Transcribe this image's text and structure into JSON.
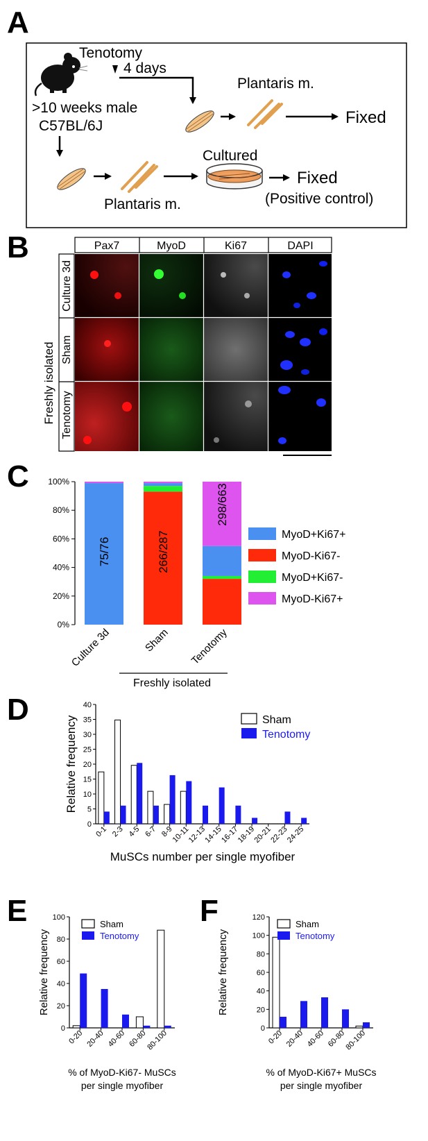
{
  "panels": {
    "A": {
      "letter": "A",
      "tenotomy_label": "Tenotomy",
      "days_label": "4 days",
      "mouse_line1": ">10 weeks male",
      "mouse_line2": "C57BL/6J",
      "plantaris_top": "Plantaris m.",
      "plantaris_bottom": "Plantaris m.",
      "fixed_top": "Fixed",
      "cultured_label": "Cultured",
      "fixed_bottom": "Fixed",
      "positive_control": "(Positive control)"
    },
    "B": {
      "letter": "B",
      "columns": [
        "Pax7",
        "MyoD",
        "Ki67",
        "DAPI"
      ],
      "rows": [
        "Culture 3d",
        "Sham",
        "Tenotomy"
      ],
      "group_label": "Freshly isolated"
    },
    "C": {
      "letter": "C",
      "group_label": "Freshly isolated",
      "colors": {
        "MyoD+Ki67+": "#4a90f0",
        "MyoD-Ki67-": "#ff2a0a",
        "MyoD+Ki67-": "#22ee33",
        "MyoD-Ki67+": "#dd55ee"
      }
    },
    "D": {
      "letter": "D"
    },
    "E": {
      "letter": "E"
    },
    "F": {
      "letter": "F"
    }
  },
  "chart_data": [
    {
      "id": "C",
      "type": "bar",
      "stacked": true,
      "categories": [
        "Culture 3d",
        "Sham",
        "Tenotomy"
      ],
      "ylim": [
        0,
        100
      ],
      "yticks": [
        "0%",
        "20%",
        "40%",
        "60%",
        "80%",
        "100%"
      ],
      "series": [
        {
          "name": "MyoD-Ki67-",
          "values": [
            0,
            93,
            32
          ],
          "color": "#ff2a0a"
        },
        {
          "name": "MyoD+Ki67-",
          "values": [
            0,
            4,
            2
          ],
          "color": "#22ee33"
        },
        {
          "name": "MyoD+Ki67+",
          "values": [
            99,
            2,
            21
          ],
          "color": "#4a90f0"
        },
        {
          "name": "MyoD-Ki67+",
          "values": [
            1,
            1,
            45
          ],
          "color": "#dd55ee"
        }
      ],
      "legend_order": [
        "MyoD+Ki67+",
        "MyoD-Ki67-",
        "MyoD+Ki67-",
        "MyoD-Ki67+"
      ],
      "bar_labels": [
        "75/76",
        "266/287",
        "298/663"
      ],
      "legend_position": "right"
    },
    {
      "id": "D",
      "type": "bar",
      "categories": [
        "0-1",
        "2-3",
        "4-5",
        "6-7",
        "8-9",
        "10-11",
        "12-13",
        "14-15",
        "16-17",
        "18-19",
        "20-21",
        "22-23",
        "24-25"
      ],
      "ylim": [
        0,
        40
      ],
      "yticks": [
        "0",
        "5",
        "10",
        "15",
        "20",
        "25",
        "30",
        "35",
        "40"
      ],
      "ylabel": "Relative frequency",
      "xlabel": "MuSCs number per single myofiber",
      "series": [
        {
          "name": "Sham",
          "values": [
            17.4,
            34.8,
            19.6,
            10.9,
            6.5,
            10.9,
            0,
            0,
            0,
            0,
            0,
            0,
            0
          ]
        },
        {
          "name": "Tenotomy",
          "values": [
            4.1,
            6.1,
            20.4,
            6.1,
            16.3,
            14.3,
            6.1,
            12.2,
            6.1,
            2.0,
            0,
            4.1,
            2.0
          ]
        }
      ],
      "legend_position": "top-right"
    },
    {
      "id": "E",
      "type": "bar",
      "categories": [
        "0-20",
        "20-40",
        "40-60",
        "60-80",
        "80-100"
      ],
      "ylim": [
        0,
        100
      ],
      "yticks": [
        "0",
        "20",
        "40",
        "60",
        "80",
        "100"
      ],
      "ylabel": "Relative frequency",
      "xlabel_line1": "% of MyoD-Ki67- MuSCs",
      "xlabel_line2": "per single myofiber",
      "series": [
        {
          "name": "Sham",
          "values": [
            2,
            0,
            0,
            10,
            88
          ]
        },
        {
          "name": "Tenotomy",
          "values": [
            49,
            35,
            12,
            2,
            2
          ]
        }
      ],
      "legend_position": "top-left"
    },
    {
      "id": "F",
      "type": "bar",
      "categories": [
        "0-20",
        "20-40",
        "40-60",
        "60-80",
        "80-100"
      ],
      "ylim": [
        0,
        120
      ],
      "yticks": [
        "0",
        "20",
        "40",
        "60",
        "80",
        "100",
        "120"
      ],
      "ylabel": "Relative frequency",
      "xlabel_line1": "% of MyoD-Ki67+ MuSCs",
      "xlabel_line2": "per single myofiber",
      "series": [
        {
          "name": "Sham",
          "values": [
            98,
            0,
            0,
            0,
            2
          ]
        },
        {
          "name": "Tenotomy",
          "values": [
            12,
            29,
            33,
            20,
            6
          ]
        }
      ],
      "legend_position": "top-left"
    }
  ]
}
